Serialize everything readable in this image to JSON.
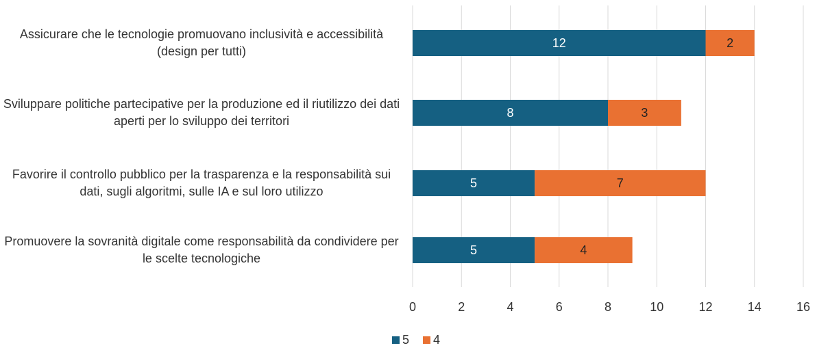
{
  "chart_data": {
    "type": "stacked_barh",
    "categories": [
      "Assicurare che le tecnologie promuovano inclusività e accessibilità (design per tutti)",
      "Sviluppare politiche partecipative per la produzione ed il riutilizzo dei dati aperti per lo sviluppo dei territori",
      "Favorire il controllo pubblico per la trasparenza e la responsabilità sui dati, sugli algoritmi, sulle IA e sul loro utilizzo",
      "Promuovere la sovranità digitale come responsabilità da condividere per le scelte tecnologiche"
    ],
    "series": [
      {
        "name": "5",
        "color": "#156082",
        "values": [
          12,
          8,
          5,
          5
        ]
      },
      {
        "name": "4",
        "color": "#e97132",
        "values": [
          2,
          3,
          7,
          4
        ]
      }
    ],
    "xlim": [
      0,
      16
    ],
    "xticks": [
      0,
      2,
      4,
      6,
      8,
      10,
      12,
      14,
      16
    ],
    "grid": true,
    "legend": "bottom"
  }
}
